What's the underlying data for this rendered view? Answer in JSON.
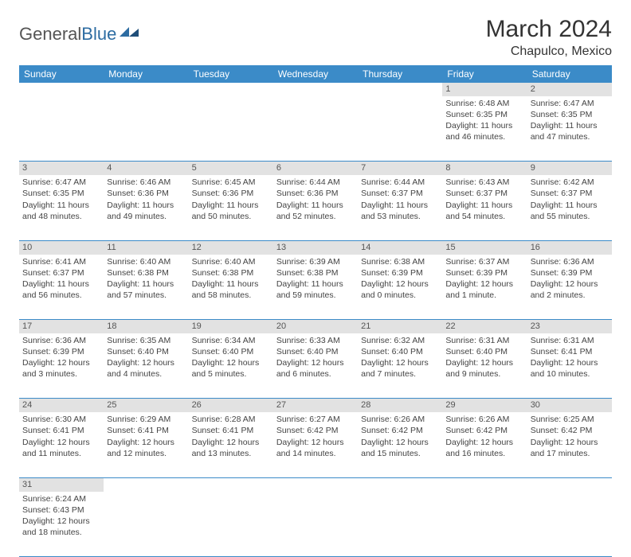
{
  "logo": {
    "text1": "General",
    "text2": "Blue"
  },
  "header": {
    "month": "March 2024",
    "location": "Chapulco, Mexico"
  },
  "colors": {
    "header_bg": "#3b8bc8",
    "header_text": "#ffffff",
    "daynum_bg": "#e2e2e2",
    "border": "#3b8bc8",
    "logo_gray": "#555555",
    "logo_blue": "#2d6ca2"
  },
  "weekdays": [
    "Sunday",
    "Monday",
    "Tuesday",
    "Wednesday",
    "Thursday",
    "Friday",
    "Saturday"
  ],
  "weeks": [
    {
      "nums": [
        "",
        "",
        "",
        "",
        "",
        "1",
        "2"
      ],
      "cells": [
        null,
        null,
        null,
        null,
        null,
        {
          "sunrise": "Sunrise: 6:48 AM",
          "sunset": "Sunset: 6:35 PM",
          "day1": "Daylight: 11 hours",
          "day2": "and 46 minutes."
        },
        {
          "sunrise": "Sunrise: 6:47 AM",
          "sunset": "Sunset: 6:35 PM",
          "day1": "Daylight: 11 hours",
          "day2": "and 47 minutes."
        }
      ]
    },
    {
      "nums": [
        "3",
        "4",
        "5",
        "6",
        "7",
        "8",
        "9"
      ],
      "cells": [
        {
          "sunrise": "Sunrise: 6:47 AM",
          "sunset": "Sunset: 6:35 PM",
          "day1": "Daylight: 11 hours",
          "day2": "and 48 minutes."
        },
        {
          "sunrise": "Sunrise: 6:46 AM",
          "sunset": "Sunset: 6:36 PM",
          "day1": "Daylight: 11 hours",
          "day2": "and 49 minutes."
        },
        {
          "sunrise": "Sunrise: 6:45 AM",
          "sunset": "Sunset: 6:36 PM",
          "day1": "Daylight: 11 hours",
          "day2": "and 50 minutes."
        },
        {
          "sunrise": "Sunrise: 6:44 AM",
          "sunset": "Sunset: 6:36 PM",
          "day1": "Daylight: 11 hours",
          "day2": "and 52 minutes."
        },
        {
          "sunrise": "Sunrise: 6:44 AM",
          "sunset": "Sunset: 6:37 PM",
          "day1": "Daylight: 11 hours",
          "day2": "and 53 minutes."
        },
        {
          "sunrise": "Sunrise: 6:43 AM",
          "sunset": "Sunset: 6:37 PM",
          "day1": "Daylight: 11 hours",
          "day2": "and 54 minutes."
        },
        {
          "sunrise": "Sunrise: 6:42 AM",
          "sunset": "Sunset: 6:37 PM",
          "day1": "Daylight: 11 hours",
          "day2": "and 55 minutes."
        }
      ]
    },
    {
      "nums": [
        "10",
        "11",
        "12",
        "13",
        "14",
        "15",
        "16"
      ],
      "cells": [
        {
          "sunrise": "Sunrise: 6:41 AM",
          "sunset": "Sunset: 6:37 PM",
          "day1": "Daylight: 11 hours",
          "day2": "and 56 minutes."
        },
        {
          "sunrise": "Sunrise: 6:40 AM",
          "sunset": "Sunset: 6:38 PM",
          "day1": "Daylight: 11 hours",
          "day2": "and 57 minutes."
        },
        {
          "sunrise": "Sunrise: 6:40 AM",
          "sunset": "Sunset: 6:38 PM",
          "day1": "Daylight: 11 hours",
          "day2": "and 58 minutes."
        },
        {
          "sunrise": "Sunrise: 6:39 AM",
          "sunset": "Sunset: 6:38 PM",
          "day1": "Daylight: 11 hours",
          "day2": "and 59 minutes."
        },
        {
          "sunrise": "Sunrise: 6:38 AM",
          "sunset": "Sunset: 6:39 PM",
          "day1": "Daylight: 12 hours",
          "day2": "and 0 minutes."
        },
        {
          "sunrise": "Sunrise: 6:37 AM",
          "sunset": "Sunset: 6:39 PM",
          "day1": "Daylight: 12 hours",
          "day2": "and 1 minute."
        },
        {
          "sunrise": "Sunrise: 6:36 AM",
          "sunset": "Sunset: 6:39 PM",
          "day1": "Daylight: 12 hours",
          "day2": "and 2 minutes."
        }
      ]
    },
    {
      "nums": [
        "17",
        "18",
        "19",
        "20",
        "21",
        "22",
        "23"
      ],
      "cells": [
        {
          "sunrise": "Sunrise: 6:36 AM",
          "sunset": "Sunset: 6:39 PM",
          "day1": "Daylight: 12 hours",
          "day2": "and 3 minutes."
        },
        {
          "sunrise": "Sunrise: 6:35 AM",
          "sunset": "Sunset: 6:40 PM",
          "day1": "Daylight: 12 hours",
          "day2": "and 4 minutes."
        },
        {
          "sunrise": "Sunrise: 6:34 AM",
          "sunset": "Sunset: 6:40 PM",
          "day1": "Daylight: 12 hours",
          "day2": "and 5 minutes."
        },
        {
          "sunrise": "Sunrise: 6:33 AM",
          "sunset": "Sunset: 6:40 PM",
          "day1": "Daylight: 12 hours",
          "day2": "and 6 minutes."
        },
        {
          "sunrise": "Sunrise: 6:32 AM",
          "sunset": "Sunset: 6:40 PM",
          "day1": "Daylight: 12 hours",
          "day2": "and 7 minutes."
        },
        {
          "sunrise": "Sunrise: 6:31 AM",
          "sunset": "Sunset: 6:40 PM",
          "day1": "Daylight: 12 hours",
          "day2": "and 9 minutes."
        },
        {
          "sunrise": "Sunrise: 6:31 AM",
          "sunset": "Sunset: 6:41 PM",
          "day1": "Daylight: 12 hours",
          "day2": "and 10 minutes."
        }
      ]
    },
    {
      "nums": [
        "24",
        "25",
        "26",
        "27",
        "28",
        "29",
        "30"
      ],
      "cells": [
        {
          "sunrise": "Sunrise: 6:30 AM",
          "sunset": "Sunset: 6:41 PM",
          "day1": "Daylight: 12 hours",
          "day2": "and 11 minutes."
        },
        {
          "sunrise": "Sunrise: 6:29 AM",
          "sunset": "Sunset: 6:41 PM",
          "day1": "Daylight: 12 hours",
          "day2": "and 12 minutes."
        },
        {
          "sunrise": "Sunrise: 6:28 AM",
          "sunset": "Sunset: 6:41 PM",
          "day1": "Daylight: 12 hours",
          "day2": "and 13 minutes."
        },
        {
          "sunrise": "Sunrise: 6:27 AM",
          "sunset": "Sunset: 6:42 PM",
          "day1": "Daylight: 12 hours",
          "day2": "and 14 minutes."
        },
        {
          "sunrise": "Sunrise: 6:26 AM",
          "sunset": "Sunset: 6:42 PM",
          "day1": "Daylight: 12 hours",
          "day2": "and 15 minutes."
        },
        {
          "sunrise": "Sunrise: 6:26 AM",
          "sunset": "Sunset: 6:42 PM",
          "day1": "Daylight: 12 hours",
          "day2": "and 16 minutes."
        },
        {
          "sunrise": "Sunrise: 6:25 AM",
          "sunset": "Sunset: 6:42 PM",
          "day1": "Daylight: 12 hours",
          "day2": "and 17 minutes."
        }
      ]
    },
    {
      "nums": [
        "31",
        "",
        "",
        "",
        "",
        "",
        ""
      ],
      "cells": [
        {
          "sunrise": "Sunrise: 6:24 AM",
          "sunset": "Sunset: 6:43 PM",
          "day1": "Daylight: 12 hours",
          "day2": "and 18 minutes."
        },
        null,
        null,
        null,
        null,
        null,
        null
      ]
    }
  ]
}
